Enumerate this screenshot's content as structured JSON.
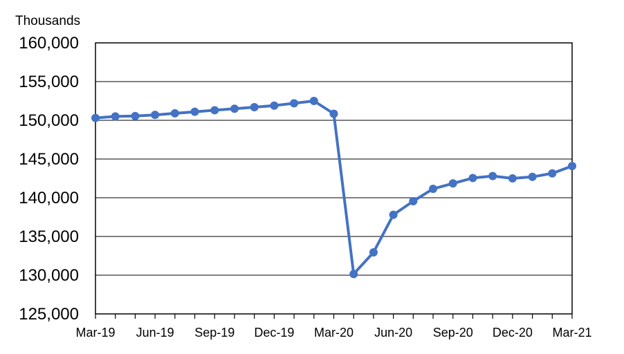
{
  "chart_data": {
    "type": "line",
    "title": "",
    "ylabel": "Thousands",
    "xlabel": "",
    "ylim": [
      125000,
      160000
    ],
    "y_ticks": [
      125000,
      130000,
      135000,
      140000,
      145000,
      150000,
      155000,
      160000
    ],
    "y_tick_labels": [
      "125,000",
      "130,000",
      "135,000",
      "140,000",
      "145,000",
      "150,000",
      "155,000",
      "160,000"
    ],
    "x_tick_labels": [
      "Mar-19",
      "Jun-19",
      "Sep-19",
      "Dec-19",
      "Mar-20",
      "Jun-20",
      "Sep-20",
      "Dec-20",
      "Mar-21"
    ],
    "grid": true,
    "legend": "none",
    "series_color": "#4472C4",
    "series": [
      {
        "x": [
          "Mar-19",
          "Apr-19",
          "May-19",
          "Jun-19",
          "Jul-19",
          "Aug-19",
          "Sep-19",
          "Oct-19",
          "Nov-19",
          "Dec-19",
          "Jan-20",
          "Feb-20",
          "Mar-20",
          "Apr-20",
          "May-20",
          "Jun-20",
          "Jul-20",
          "Aug-20",
          "Sep-20",
          "Oct-20",
          "Nov-20",
          "Dec-20",
          "Jan-21",
          "Feb-21",
          "Mar-21"
        ],
        "values": [
          150300,
          150500,
          150550,
          150700,
          150900,
          151100,
          151300,
          151500,
          151700,
          151900,
          152200,
          152500,
          150850,
          130150,
          132950,
          137800,
          139550,
          141150,
          141850,
          142550,
          142800,
          142500,
          142700,
          143150,
          144100
        ]
      }
    ]
  }
}
